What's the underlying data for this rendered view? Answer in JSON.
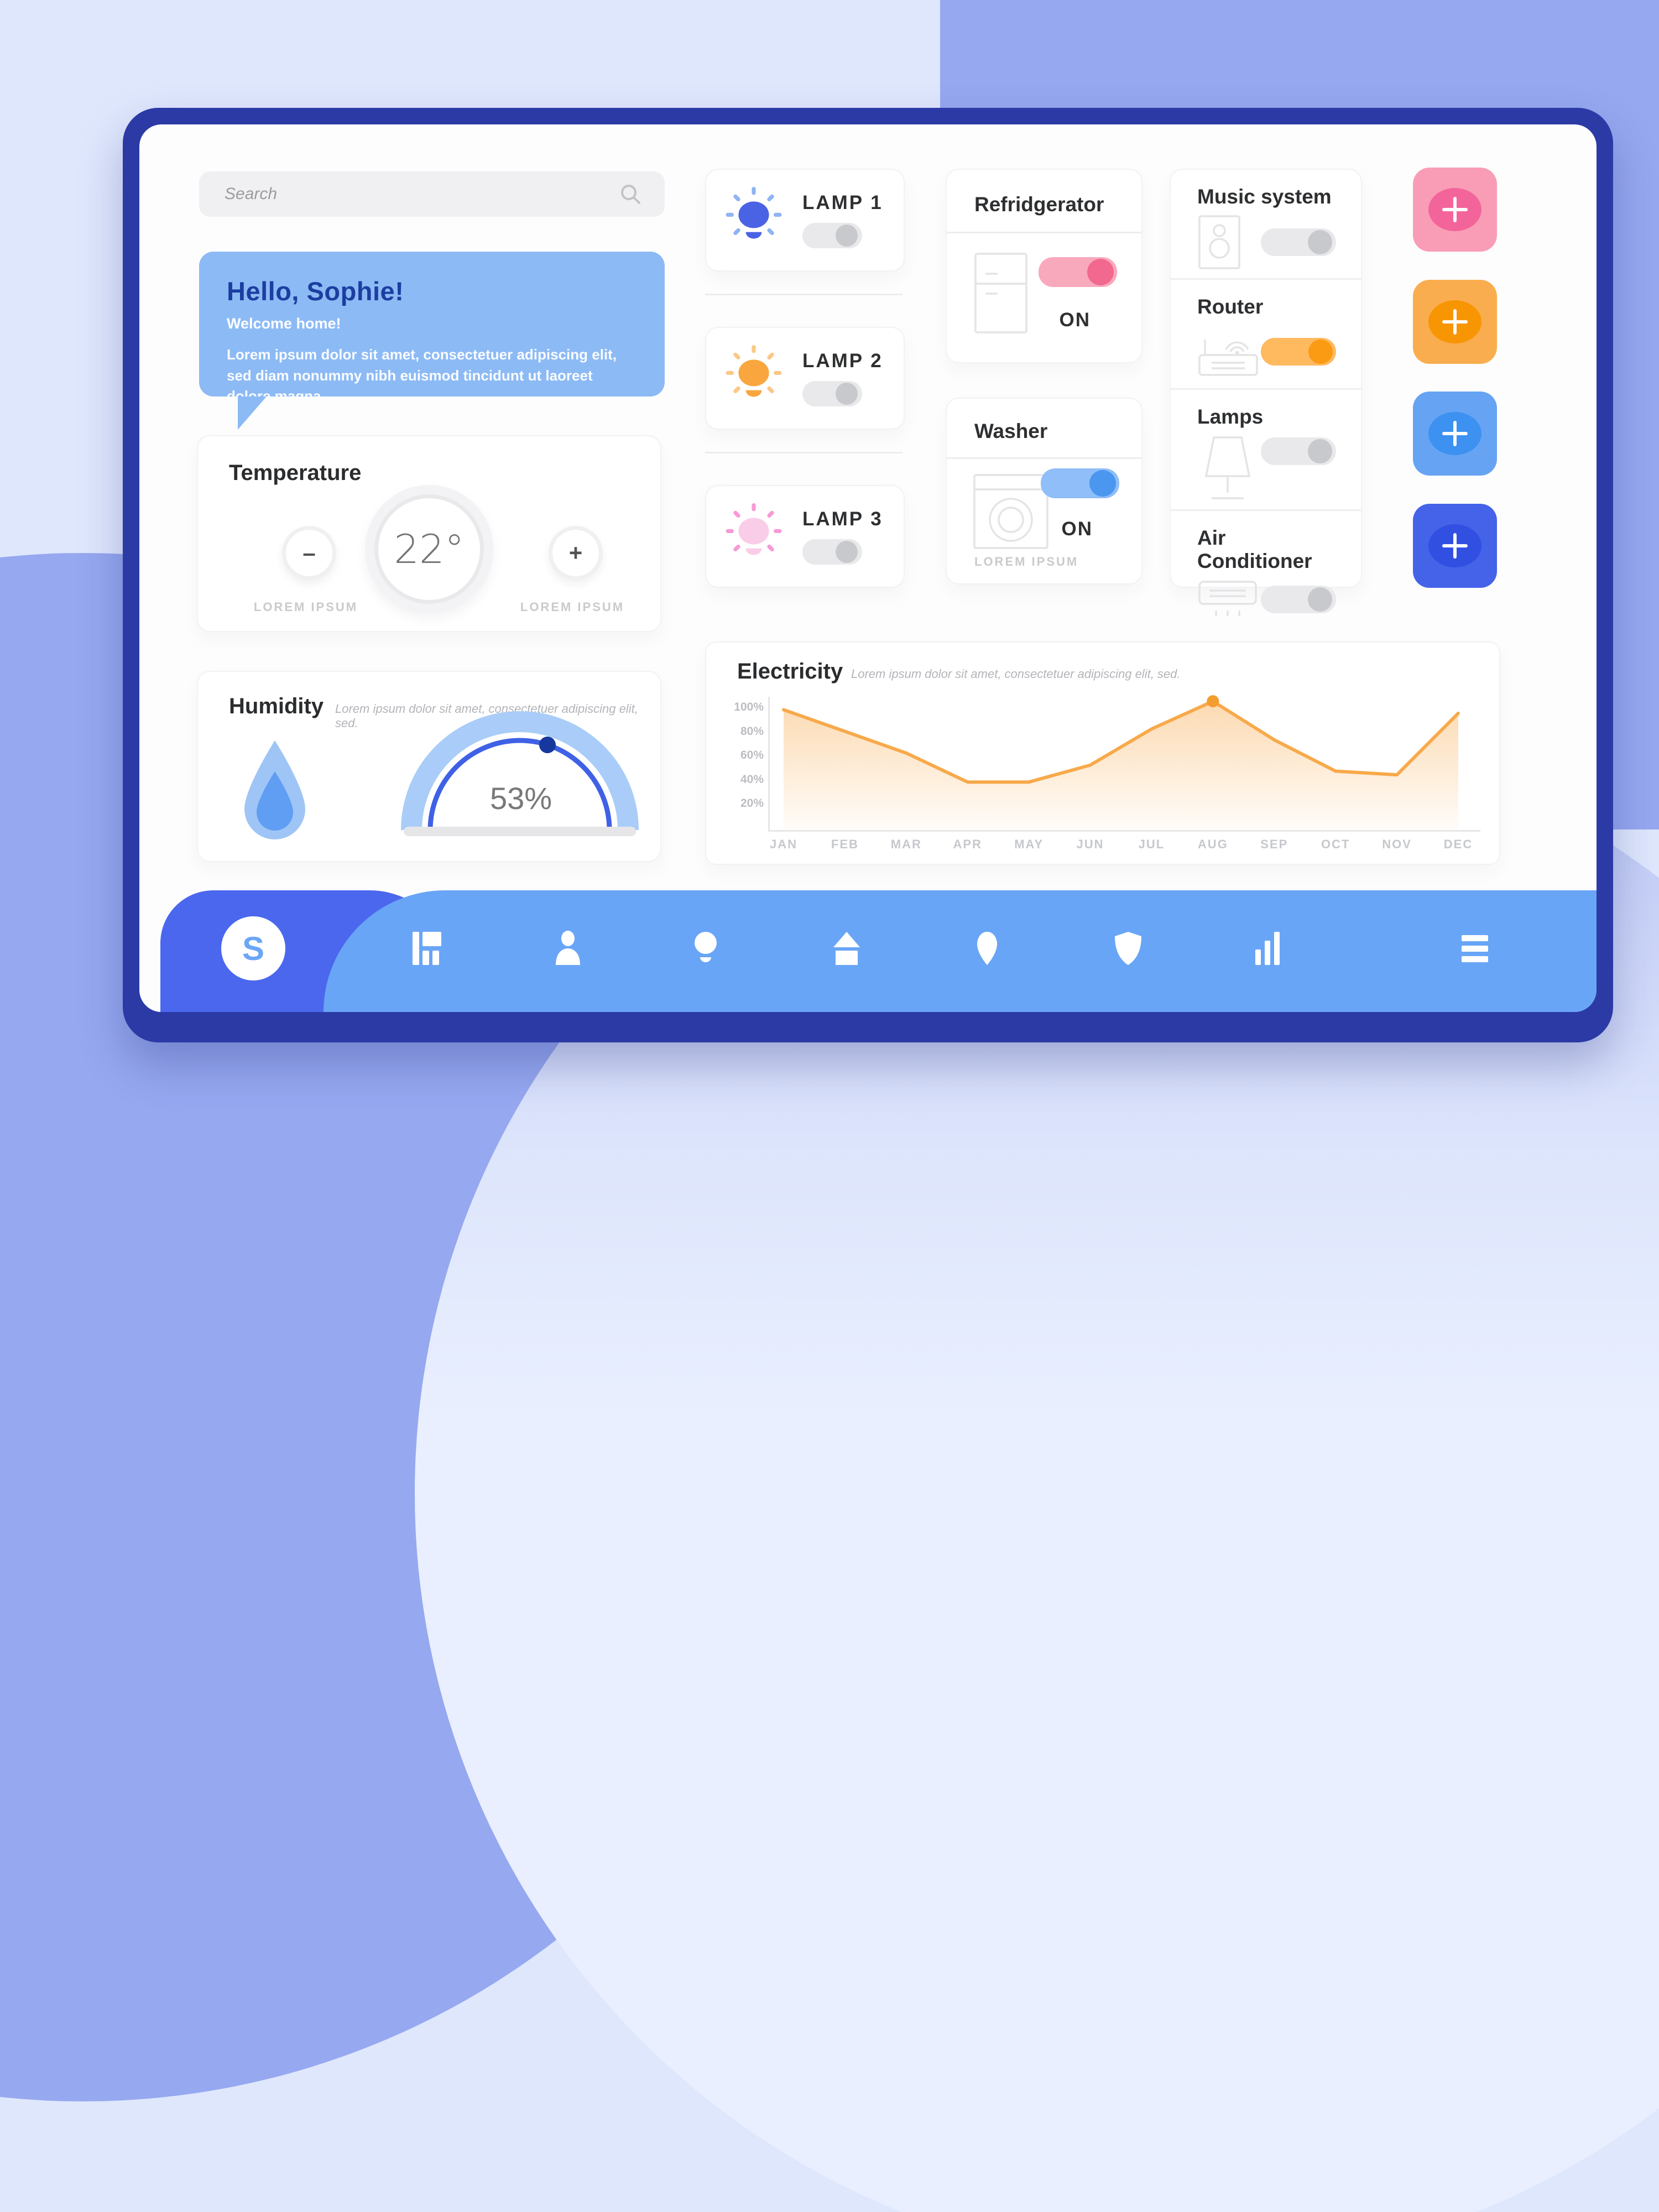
{
  "theme": {
    "frame": "#2b3aa5",
    "panel_bg": "#fdfdfe",
    "nav_bar": "#69a5f6",
    "nav_accent": "#4a67ee",
    "bg_light": "#dfe7fd",
    "bg_periwinkle": "#96a8f0",
    "gray_track": "#e9e9eb",
    "gray_knob": "#c7c9cc"
  },
  "search": {
    "placeholder": "Search"
  },
  "welcome": {
    "bg": "#8cbaf5",
    "title": "Hello, Sophie!",
    "subtitle": "Welcome home!",
    "body": "Lorem ipsum dolor sit amet, consectetuer adipiscing elit, sed diam nonummy nibh euismod tincidunt ut laoreet dolore magna."
  },
  "temperature": {
    "title": "Temperature",
    "value": "22°",
    "minus_glyph": "–",
    "plus_glyph": "+",
    "minus_label": "LOREM IPSUM",
    "plus_label": "LOREM IPSUM"
  },
  "humidity": {
    "title": "Humidity",
    "subtitle": "Lorem ipsum dolor sit amet, consectetuer adipiscing elit, sed.",
    "value": "53%",
    "arc_outer": "#a9cdf8",
    "arc_inner": "#3f61e6",
    "dot": "#16379d",
    "drop_outer": "#9fc5f7",
    "drop_inner": "#5f9ef2"
  },
  "lamps": [
    {
      "label": "LAMP 1",
      "bulb_color": "#4a63e4",
      "ray_color": "#8fb4f2",
      "state": "off"
    },
    {
      "label": "LAMP 2",
      "bulb_color": "#f9a63f",
      "ray_color": "#fbc886",
      "state": "off"
    },
    {
      "label": "LAMP 3",
      "bulb_color": "#f9cde8",
      "ray_color": "#f79ad6",
      "state": "off"
    }
  ],
  "fridge": {
    "title": "Refridgerator",
    "status": "ON",
    "track": "#f8a9bc",
    "knob": "#f2688f"
  },
  "washer": {
    "title": "Washer",
    "status": "ON",
    "note": "LOREM IPSUM",
    "track": "#8fbef8",
    "knob": "#4b96ef"
  },
  "devices": [
    {
      "label": "Music system",
      "state": "off"
    },
    {
      "label": "Router",
      "state": "on",
      "track": "#ffb95f",
      "knob": "#fb9a13"
    },
    {
      "label": "Lamps",
      "state": "off"
    },
    {
      "label": "Air Conditioner",
      "state": "off"
    }
  ],
  "add_buttons": [
    {
      "name": "add-pink",
      "bg": "#f99db6",
      "inner": "#f3659a"
    },
    {
      "name": "add-orange",
      "bg": "#f9ad4e",
      "inner": "#f79503"
    },
    {
      "name": "add-blue",
      "bg": "#66a4f3",
      "inner": "#3c91f1"
    },
    {
      "name": "add-royal",
      "bg": "#4463e9",
      "inner": "#3150e2"
    }
  ],
  "chart_data": {
    "type": "area",
    "title": "Electricity",
    "subtitle": "Lorem ipsum dolor sit amet, consectetuer adipiscing elit, sed.",
    "categories": [
      "JAN",
      "FEB",
      "MAR",
      "APR",
      "MAY",
      "JUN",
      "JUL",
      "AUG",
      "SEP",
      "OCT",
      "NOV",
      "DEC"
    ],
    "values": [
      98,
      80,
      62,
      38,
      38,
      52,
      82,
      105,
      73,
      47,
      44,
      95
    ],
    "unit": "%",
    "y_ticks": [
      "100%",
      "80%",
      "60%",
      "40%",
      "20%"
    ],
    "y_tick_values": [
      100,
      80,
      60,
      40,
      20
    ],
    "ylim": [
      0,
      110
    ],
    "grid": false,
    "legend": false,
    "highlight_index": 7,
    "line_color": "#f8a94a",
    "dot_color": "#f49d2f",
    "fill_color": "#f8a94a"
  },
  "nav": {
    "logo": "S",
    "items": [
      "dashboard",
      "profile",
      "lighting",
      "home",
      "location",
      "security",
      "stats",
      "menu"
    ]
  }
}
